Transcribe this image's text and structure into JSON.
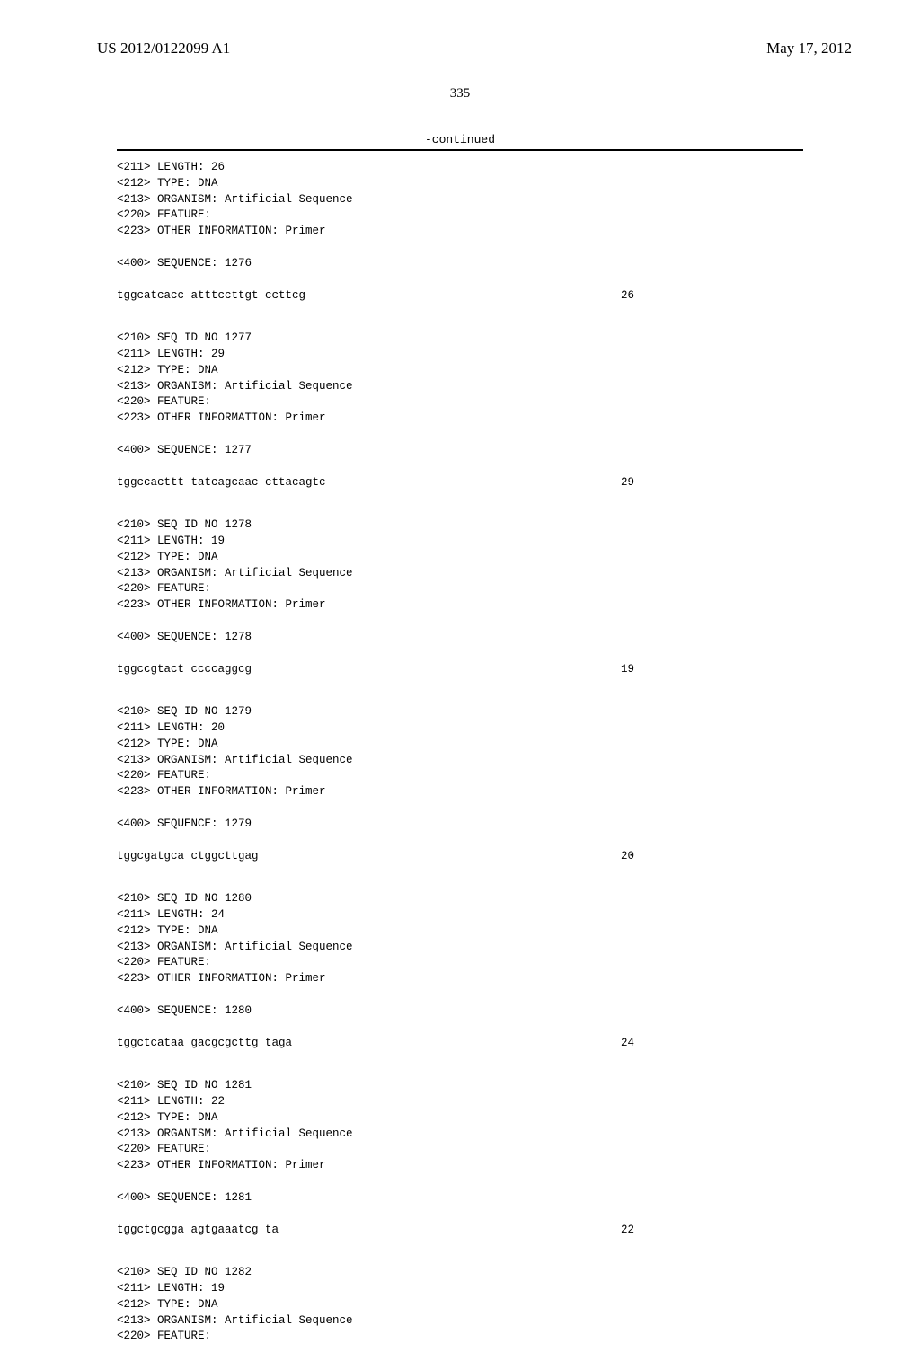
{
  "header": {
    "pub_number": "US 2012/0122099 A1",
    "pub_date": "May 17, 2012",
    "page_number": "335",
    "continued_label": "-continued"
  },
  "blocks": [
    {
      "lines": [
        "<211> LENGTH: 26",
        "<212> TYPE: DNA",
        "<213> ORGANISM: Artificial Sequence",
        "<220> FEATURE:",
        "<223> OTHER INFORMATION: Primer"
      ]
    },
    {
      "lines": [
        "<400> SEQUENCE: 1276"
      ]
    },
    {
      "seq": "tggcatcacc atttccttgt ccttcg",
      "len": "26"
    },
    {
      "spacer": true
    },
    {
      "lines": [
        "<210> SEQ ID NO 1277",
        "<211> LENGTH: 29",
        "<212> TYPE: DNA",
        "<213> ORGANISM: Artificial Sequence",
        "<220> FEATURE:",
        "<223> OTHER INFORMATION: Primer"
      ]
    },
    {
      "lines": [
        "<400> SEQUENCE: 1277"
      ]
    },
    {
      "seq": "tggccacttt tatcagcaac cttacagtc",
      "len": "29"
    },
    {
      "spacer": true
    },
    {
      "lines": [
        "<210> SEQ ID NO 1278",
        "<211> LENGTH: 19",
        "<212> TYPE: DNA",
        "<213> ORGANISM: Artificial Sequence",
        "<220> FEATURE:",
        "<223> OTHER INFORMATION: Primer"
      ]
    },
    {
      "lines": [
        "<400> SEQUENCE: 1278"
      ]
    },
    {
      "seq": "tggccgtact ccccaggcg",
      "len": "19"
    },
    {
      "spacer": true
    },
    {
      "lines": [
        "<210> SEQ ID NO 1279",
        "<211> LENGTH: 20",
        "<212> TYPE: DNA",
        "<213> ORGANISM: Artificial Sequence",
        "<220> FEATURE:",
        "<223> OTHER INFORMATION: Primer"
      ]
    },
    {
      "lines": [
        "<400> SEQUENCE: 1279"
      ]
    },
    {
      "seq": "tggcgatgca ctggcttgag",
      "len": "20"
    },
    {
      "spacer": true
    },
    {
      "lines": [
        "<210> SEQ ID NO 1280",
        "<211> LENGTH: 24",
        "<212> TYPE: DNA",
        "<213> ORGANISM: Artificial Sequence",
        "<220> FEATURE:",
        "<223> OTHER INFORMATION: Primer"
      ]
    },
    {
      "lines": [
        "<400> SEQUENCE: 1280"
      ]
    },
    {
      "seq": "tggctcataa gacgcgcttg taga",
      "len": "24"
    },
    {
      "spacer": true
    },
    {
      "lines": [
        "<210> SEQ ID NO 1281",
        "<211> LENGTH: 22",
        "<212> TYPE: DNA",
        "<213> ORGANISM: Artificial Sequence",
        "<220> FEATURE:",
        "<223> OTHER INFORMATION: Primer"
      ]
    },
    {
      "lines": [
        "<400> SEQUENCE: 1281"
      ]
    },
    {
      "seq": "tggctgcgga agtgaaatcg ta",
      "len": "22"
    },
    {
      "spacer": true
    },
    {
      "lines": [
        "<210> SEQ ID NO 1282",
        "<211> LENGTH: 19",
        "<212> TYPE: DNA",
        "<213> ORGANISM: Artificial Sequence",
        "<220> FEATURE:"
      ]
    }
  ]
}
